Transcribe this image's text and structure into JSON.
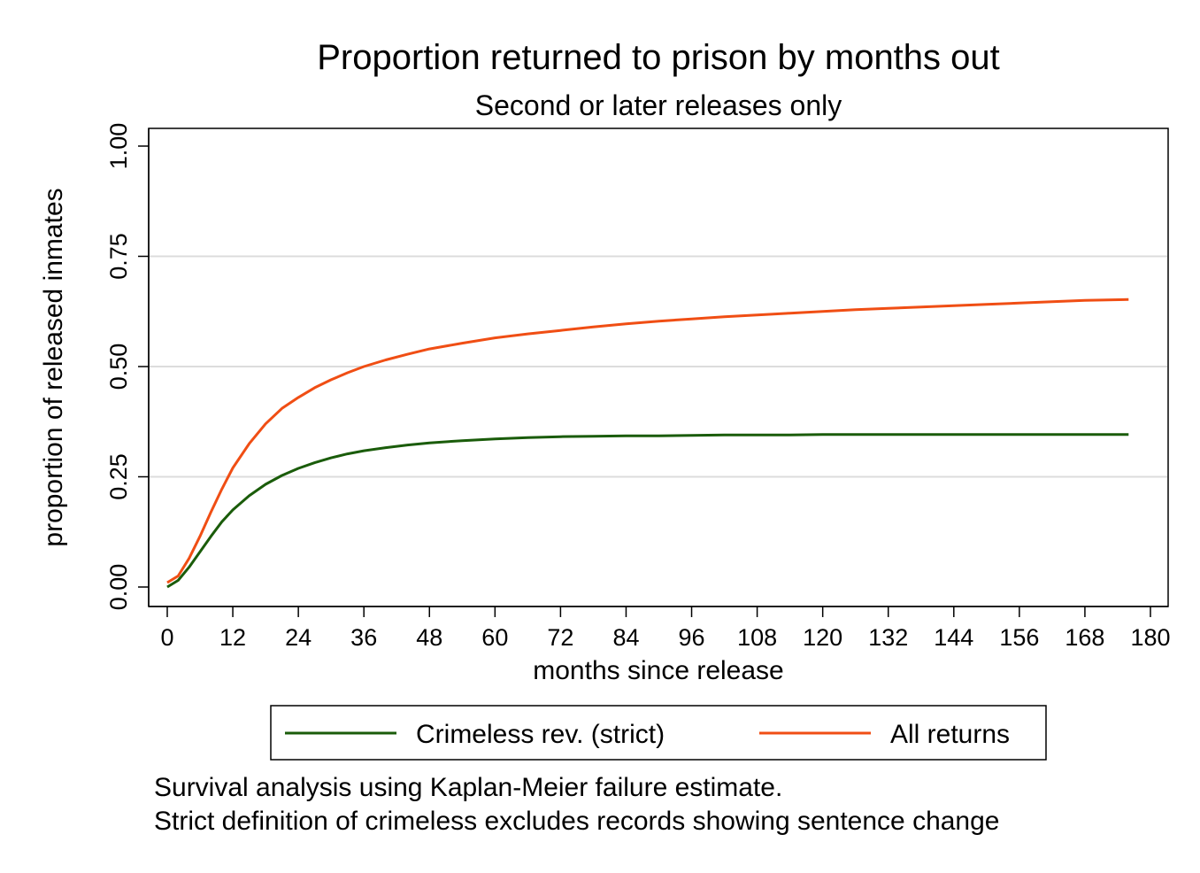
{
  "chart_data": {
    "type": "line",
    "title": "Proportion returned to prison by months out",
    "subtitle": "Second or later releases only",
    "xlabel": "months since release",
    "ylabel": "proportion of released inmates",
    "xlim": [
      0,
      180
    ],
    "ylim": [
      0,
      1
    ],
    "x_ticks": [
      "0",
      "12",
      "24",
      "36",
      "48",
      "60",
      "72",
      "84",
      "96",
      "108",
      "120",
      "132",
      "144",
      "156",
      "168",
      "180"
    ],
    "y_ticks": [
      "0.00",
      "0.25",
      "0.50",
      "0.75",
      "1.00"
    ],
    "grid": "horizontal",
    "legend_position": "bottom",
    "x": [
      0,
      2,
      4,
      6,
      8,
      10,
      12,
      15,
      18,
      21,
      24,
      27,
      30,
      33,
      36,
      40,
      44,
      48,
      54,
      60,
      66,
      72,
      78,
      84,
      90,
      96,
      102,
      108,
      114,
      120,
      126,
      132,
      138,
      144,
      150,
      156,
      162,
      168,
      176
    ],
    "series": [
      {
        "name": "Crimeless rev. (strict)",
        "color": "#1a5c0a",
        "values": [
          0.0,
          0.015,
          0.045,
          0.08,
          0.115,
          0.148,
          0.175,
          0.207,
          0.233,
          0.253,
          0.269,
          0.282,
          0.293,
          0.302,
          0.309,
          0.316,
          0.322,
          0.327,
          0.332,
          0.336,
          0.339,
          0.341,
          0.342,
          0.343,
          0.343,
          0.344,
          0.345,
          0.345,
          0.345,
          0.346,
          0.346,
          0.346,
          0.346,
          0.346,
          0.346,
          0.346,
          0.346,
          0.346,
          0.346
        ]
      },
      {
        "name": "All returns",
        "color": "#f04e14",
        "values": [
          0.01,
          0.025,
          0.065,
          0.115,
          0.17,
          0.222,
          0.27,
          0.325,
          0.37,
          0.405,
          0.43,
          0.452,
          0.47,
          0.486,
          0.5,
          0.515,
          0.528,
          0.54,
          0.553,
          0.565,
          0.574,
          0.582,
          0.59,
          0.597,
          0.603,
          0.608,
          0.613,
          0.617,
          0.621,
          0.625,
          0.629,
          0.632,
          0.635,
          0.638,
          0.641,
          0.644,
          0.647,
          0.65,
          0.652
        ]
      }
    ],
    "notes": [
      "Survival analysis using Kaplan-Meier failure estimate.",
      "Strict definition of crimeless excludes records showing sentence change"
    ]
  }
}
